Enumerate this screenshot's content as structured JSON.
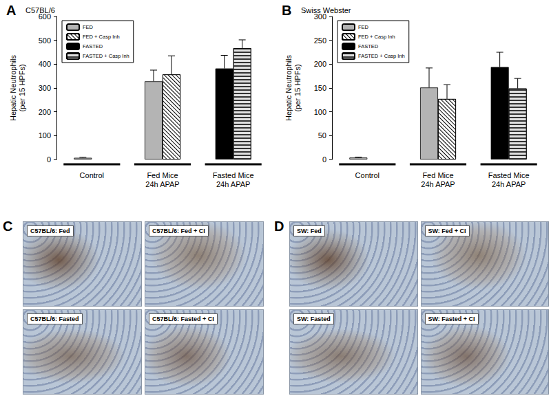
{
  "chart_data": [
    {
      "type": "bar",
      "panel": "A",
      "title": "C57BL/6",
      "y_label": "Hepatic Neutrophils\n(per 15 HPFs)",
      "categories": [
        "Control",
        "Fed Mice\n24h APAP",
        "Fasted Mice\n24h APAP"
      ],
      "series": [
        {
          "name": "FED",
          "color": "#b4b4b4",
          "values": [
            7,
            328,
            null
          ],
          "errors": [
            2,
            47,
            null
          ]
        },
        {
          "name": "FED + Casp Inh",
          "color": "#ffffff",
          "values": [
            null,
            357,
            null
          ],
          "errors": [
            null,
            78,
            null
          ]
        },
        {
          "name": "FASTED",
          "color": "#000000",
          "values": [
            null,
            null,
            382
          ],
          "errors": [
            null,
            null,
            55
          ]
        },
        {
          "name": "FASTED + Casp Inh",
          "color": "#e0e0e0",
          "values": [
            null,
            null,
            467
          ],
          "errors": [
            null,
            null,
            35
          ]
        }
      ],
      "ylim": [
        0,
        600
      ],
      "yticks": [
        0,
        100,
        200,
        300,
        400,
        500,
        600
      ],
      "legend": "upper left",
      "grid": false
    },
    {
      "type": "bar",
      "panel": "B",
      "title": "Swiss Webster",
      "y_label": "Hepatic Neutrophils\n(per 15 HPFs)",
      "categories": [
        "Control",
        "Fed Mice\n24h APAP",
        "Fasted Mice\n24h APAP"
      ],
      "series": [
        {
          "name": "FED",
          "color": "#b4b4b4",
          "values": [
            4,
            151,
            null
          ],
          "errors": [
            1,
            41,
            null
          ]
        },
        {
          "name": "FED + Casp Inh",
          "color": "#ffffff",
          "values": [
            null,
            127,
            null
          ],
          "errors": [
            null,
            30,
            null
          ]
        },
        {
          "name": "FASTED",
          "color": "#000000",
          "values": [
            null,
            null,
            194
          ],
          "errors": [
            null,
            null,
            31
          ]
        },
        {
          "name": "FASTED + Casp Inh",
          "color": "#e0e0e0",
          "values": [
            null,
            null,
            149
          ],
          "errors": [
            null,
            null,
            21
          ]
        }
      ],
      "ylim": [
        0,
        300
      ],
      "yticks": [
        0,
        50,
        100,
        150,
        200,
        250,
        300
      ],
      "legend": "upper left",
      "grid": false
    }
  ],
  "image_panels": [
    {
      "panel": "C",
      "labels": [
        "C57BL/6: Fed",
        "C57BL/6: Fed + CI",
        "C57BL/6: Fasted",
        "C57BL/6: Fasted + CI"
      ]
    },
    {
      "panel": "D",
      "labels": [
        "SW: Fed",
        "SW: Fed + CI",
        "SW: Fasted",
        "SW: Fasted + CI"
      ]
    }
  ]
}
